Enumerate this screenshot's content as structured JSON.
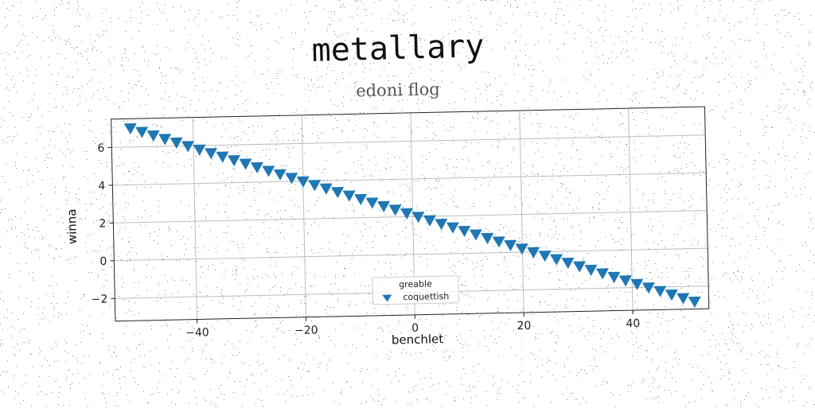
{
  "suptitle": "metallary",
  "chart_data": {
    "type": "scatter",
    "title": "edoni flog",
    "xlabel": "benchlet",
    "ylabel": "winna",
    "xlim": [
      -55,
      54
    ],
    "ylim": [
      -3.2,
      7.5
    ],
    "xticks": [
      -40,
      -20,
      0,
      20,
      40
    ],
    "xtick_labels": [
      "−40",
      "−20",
      "0",
      "20",
      "40"
    ],
    "yticks": [
      -2,
      0,
      2,
      4,
      6
    ],
    "ytick_labels": [
      "−2",
      "0",
      "2",
      "4",
      "6"
    ],
    "grid": true,
    "legend": {
      "title": "greable",
      "placement": "lower-center"
    },
    "series": [
      {
        "name": "coquettish",
        "marker": "triangle-down",
        "color": "#1f77b4",
        "x": [
          -51.5,
          -49.4,
          -47.3,
          -45.2,
          -43.1,
          -41.0,
          -38.9,
          -36.8,
          -34.7,
          -32.6,
          -30.5,
          -28.4,
          -26.3,
          -24.2,
          -22.1,
          -20.0,
          -17.9,
          -15.8,
          -13.7,
          -11.6,
          -9.5,
          -7.4,
          -5.3,
          -3.2,
          -1.1,
          1.0,
          3.1,
          5.2,
          7.3,
          9.4,
          11.5,
          13.6,
          15.7,
          17.8,
          19.9,
          22.0,
          24.1,
          26.2,
          28.3,
          30.4,
          32.5,
          34.6,
          36.7,
          38.8,
          40.9,
          43.0,
          45.1,
          47.2,
          49.3,
          51.4
        ],
        "y": [
          7.0,
          6.8,
          6.6,
          6.4,
          6.2,
          6.0,
          5.8,
          5.6,
          5.4,
          5.2,
          5.0,
          4.8,
          4.6,
          4.4,
          4.2,
          4.0,
          3.8,
          3.6,
          3.4,
          3.2,
          3.0,
          2.8,
          2.6,
          2.4,
          2.2,
          2.0,
          1.8,
          1.6,
          1.4,
          1.2,
          1.0,
          0.8,
          0.6,
          0.4,
          0.2,
          0.0,
          -0.2,
          -0.4,
          -0.6,
          -0.8,
          -1.0,
          -1.2,
          -1.4,
          -1.6,
          -1.8,
          -2.0,
          -2.2,
          -2.4,
          -2.6,
          -2.8
        ]
      }
    ]
  }
}
